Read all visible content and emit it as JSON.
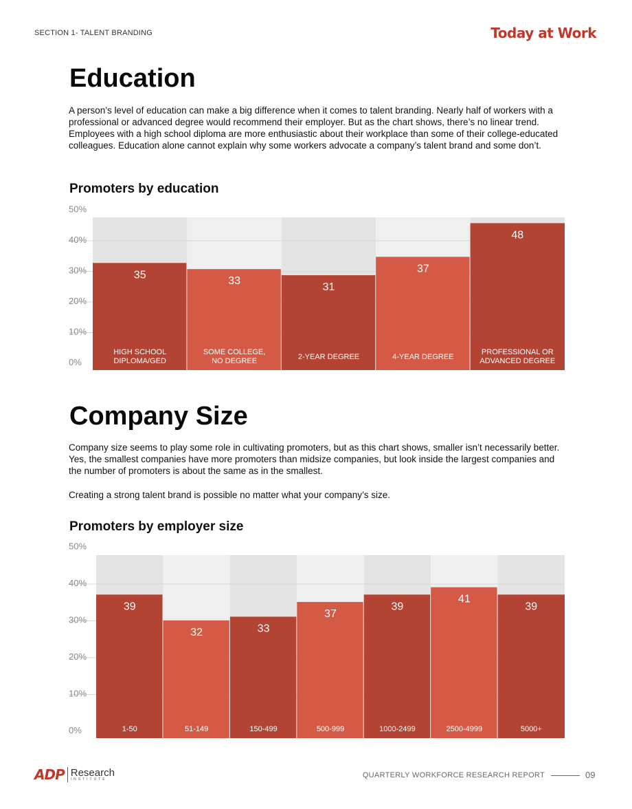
{
  "header": {
    "section_label": "SECTION 1- TALENT BRANDING",
    "brand": "Today at Work"
  },
  "education": {
    "heading": "Education",
    "paragraph": "A person’s level of education can make a big difference when it comes to talent branding. Nearly half of workers with a professional or advanced degree would recommend their employer. But as the chart shows, there’s no linear trend. Employees with a high school diploma are more enthusiastic about their workplace than some of their college-educated colleagues. Education alone cannot explain why some workers advocate a company’s talent brand and some don’t."
  },
  "company_size": {
    "heading": "Company Size",
    "paragraph1": "Company size seems to play some role in cultivating promoters, but as this chart shows, smaller isn’t necessarily better. Yes, the smallest companies have more promoters than midsize companies, but look inside the largest companies and the number of promoters is about the same as in the smallest.",
    "paragraph2": "Creating a strong talent brand is possible no matter what your company’s size."
  },
  "footer": {
    "logo_mark": "ADP",
    "logo_research": "Research",
    "logo_institute": "INSTITUTE",
    "report_title": "QUARTERLY WORKFORCE RESEARCH REPORT",
    "page_number": "09"
  },
  "colors": {
    "dark_red": "#b34333",
    "light_red": "#d55a45",
    "bg_dark": "#e3e3e3",
    "bg_light": "#efefef",
    "brand_red": "#c2372a"
  },
  "chart_data": [
    {
      "type": "bar",
      "title": "Promoters by education",
      "categories": [
        [
          "HIGH SCHOOL",
          "DIPLOMA/GED"
        ],
        [
          "SOME COLLEGE,",
          "NO DEGREE"
        ],
        [
          "2-YEAR DEGREE"
        ],
        [
          "4-YEAR DEGREE"
        ],
        [
          "PROFESSIONAL OR",
          "ADVANCED DEGREE"
        ]
      ],
      "values": [
        35,
        33,
        31,
        37,
        48
      ],
      "value_labels": [
        "35",
        "33",
        "31",
        "37",
        "48"
      ],
      "yticks": [
        "0%",
        "10%",
        "20%",
        "30%",
        "40%",
        "50%"
      ],
      "ylim": [
        0,
        50
      ],
      "grid": true
    },
    {
      "type": "bar",
      "title": "Promoters by employer size",
      "categories": [
        [
          "1-50"
        ],
        [
          "51-149"
        ],
        [
          "150-499"
        ],
        [
          "500-999"
        ],
        [
          "1000-2499"
        ],
        [
          "2500-4999"
        ],
        [
          "5000+"
        ]
      ],
      "values": [
        39,
        32,
        33,
        37,
        39,
        41,
        39
      ],
      "value_labels": [
        "39",
        "32",
        "33",
        "37",
        "39",
        "41",
        "39"
      ],
      "yticks": [
        "0%",
        "10%",
        "20%",
        "30%",
        "40%",
        "50%"
      ],
      "ylim": [
        0,
        50
      ],
      "grid": true
    }
  ]
}
